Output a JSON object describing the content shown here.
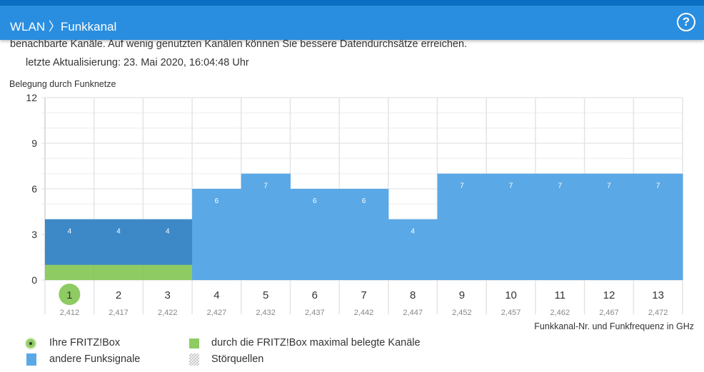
{
  "header": {
    "section": "WLAN",
    "separator": "〉",
    "page": "Funkkanal",
    "help_label": "?"
  },
  "intro_text": "benachbarte Kanäle. Auf wenig genutzten Kanälen können Sie bessere Datendurchsätze erreichen.",
  "updated_text": "letzte Aktualisierung: 23. Mai 2020, 16:04:48 Uhr",
  "colors": {
    "header": "#2a8ee0",
    "other_signals": "#5aa8e6",
    "own_channels_overlay": "#3d89c8",
    "fritzbox_channels": "#8ecb62"
  },
  "legend": [
    {
      "label": "Ihre FRITZ!Box",
      "icon": "green-dot-icon"
    },
    {
      "label": "durch die FRITZ!Box maximal belegte Kanäle",
      "icon": "green-square-icon"
    },
    {
      "label": "andere Funksignale",
      "icon": "blue-square-icon"
    },
    {
      "label": "Störquellen",
      "icon": "checkered-square-icon"
    }
  ],
  "chart_data": {
    "type": "bar",
    "title": "Belegung durch Funknetze",
    "xlabel": "Funkkanal-Nr. und Funkfrequenz in GHz",
    "ylim": [
      0,
      12
    ],
    "yticks": [
      "0",
      "3",
      "6",
      "9",
      "12"
    ],
    "categories": [
      "1",
      "2",
      "3",
      "4",
      "5",
      "6",
      "7",
      "8",
      "9",
      "10",
      "11",
      "12",
      "13"
    ],
    "frequencies": [
      "2,412",
      "2,417",
      "2,422",
      "2,427",
      "2,432",
      "2,437",
      "2,442",
      "2,447",
      "2,452",
      "2,457",
      "2,462",
      "2,467",
      "2,472"
    ],
    "series": [
      {
        "name": "andere Funksignale",
        "values": [
          4,
          4,
          4,
          6,
          7,
          6,
          6,
          4,
          7,
          7,
          7,
          7,
          7
        ]
      },
      {
        "name": "durch die FRITZ!Box maximal belegte Kanäle",
        "values": [
          1,
          1,
          1,
          0,
          0,
          0,
          0,
          0,
          0,
          0,
          0,
          0,
          0
        ]
      }
    ],
    "own_channel": "1",
    "grid": true
  }
}
